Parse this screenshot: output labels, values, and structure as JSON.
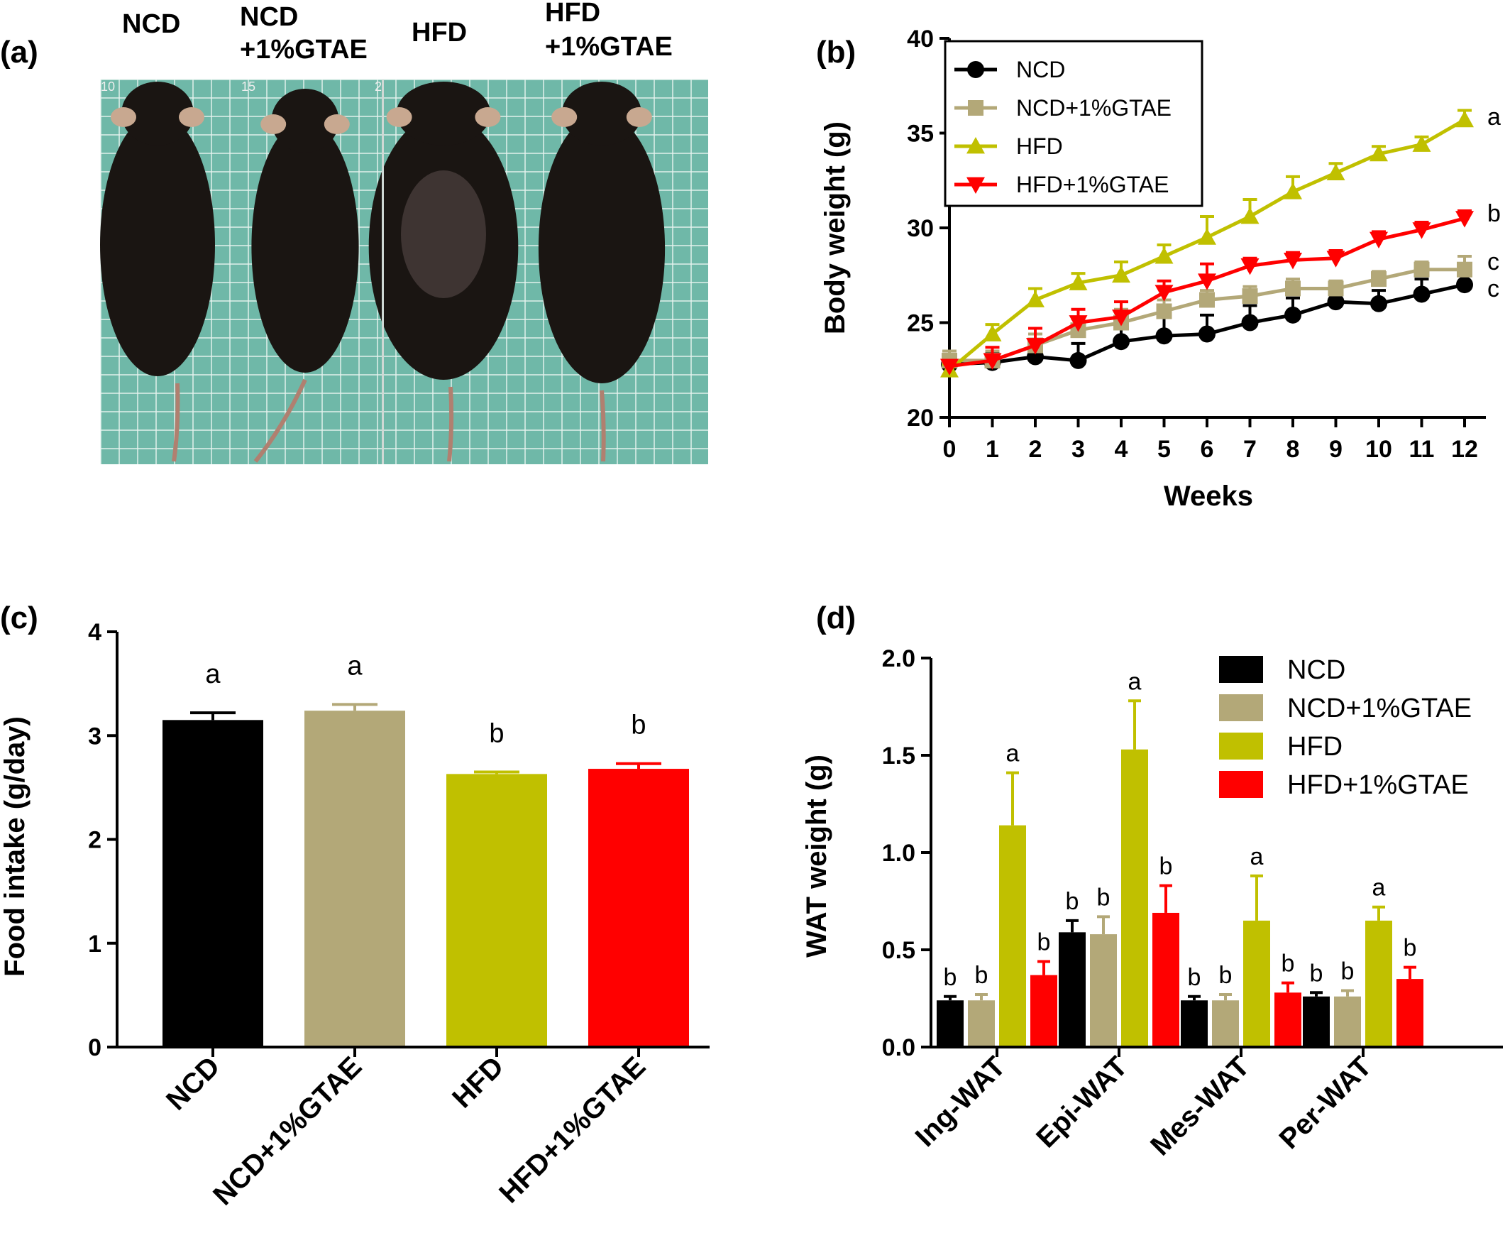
{
  "panels": {
    "a": {
      "label": "(a)",
      "photo_labels": [
        "NCD",
        "NCD",
        "+1%GTAE",
        "HFD",
        "HFD",
        "+1%GTAE"
      ],
      "ruler_marks": [
        "10",
        "15",
        "2"
      ]
    },
    "b": {
      "label": "(b)"
    },
    "c": {
      "label": "(c)"
    },
    "d": {
      "label": "(d)"
    }
  },
  "colors": {
    "NCD": "#000000",
    "NCD+1%GTAE": "#b3a878",
    "HFD": "#c0c000",
    "HFD+1%GTAE": "#ff0000",
    "photo_bg": "#6fb8a8",
    "grid": "#e8f4f0",
    "mouse": "#1a1512"
  },
  "chart_data": [
    {
      "type": "line",
      "panel": "b",
      "xlabel": "Weeks",
      "ylabel": "Body weight (g)",
      "x": [
        0,
        1,
        2,
        3,
        4,
        5,
        6,
        7,
        8,
        9,
        10,
        11,
        12
      ],
      "xticks": [
        "0",
        "1",
        "2",
        "3",
        "4",
        "5",
        "6",
        "7",
        "8",
        "9",
        "10",
        "11",
        "12"
      ],
      "ylim": [
        20,
        40
      ],
      "yticks": [
        "20",
        "25",
        "30",
        "35",
        "40"
      ],
      "legend_position": "top-left",
      "series": [
        {
          "name": "NCD",
          "marker": "circle",
          "values": [
            22.8,
            22.9,
            23.2,
            23.0,
            24.0,
            24.3,
            24.4,
            25.0,
            25.4,
            26.1,
            26.0,
            26.5,
            27.0
          ],
          "errors": [
            0.5,
            0.5,
            0.6,
            0.9,
            1.2,
            1.1,
            1.0,
            0.9,
            0.9,
            0.6,
            0.7,
            0.8,
            0.6
          ]
        },
        {
          "name": "NCD+1%GTAE",
          "marker": "square",
          "values": [
            23.0,
            23.0,
            23.8,
            24.6,
            25.0,
            25.6,
            26.2,
            26.4,
            26.8,
            26.8,
            27.3,
            27.8,
            27.8
          ],
          "errors": [
            0.5,
            0.5,
            0.6,
            0.6,
            0.7,
            0.6,
            0.5,
            0.5,
            0.5,
            0.4,
            0.4,
            0.4,
            0.7
          ]
        },
        {
          "name": "HFD",
          "marker": "triangle-up",
          "values": [
            22.5,
            24.4,
            26.2,
            27.1,
            27.5,
            28.5,
            29.5,
            30.6,
            31.9,
            32.9,
            33.9,
            34.4,
            35.7
          ],
          "errors": [
            0.3,
            0.5,
            0.6,
            0.5,
            0.7,
            0.6,
            1.1,
            0.9,
            0.8,
            0.5,
            0.4,
            0.4,
            0.5
          ]
        },
        {
          "name": "HFD+1%GTAE",
          "marker": "triangle-down",
          "values": [
            22.7,
            23.0,
            23.8,
            25.0,
            25.3,
            26.6,
            27.2,
            28.0,
            28.3,
            28.4,
            29.4,
            29.9,
            30.5
          ],
          "errors": [
            0.3,
            0.7,
            0.9,
            0.7,
            0.8,
            0.6,
            0.9,
            0.4,
            0.4,
            0.4,
            0.4,
            0.4,
            0.4
          ]
        }
      ],
      "annotations": [
        {
          "series": "HFD",
          "text": "a"
        },
        {
          "series": "HFD+1%GTAE",
          "text": "b"
        },
        {
          "series": "NCD+1%GTAE",
          "text": "c"
        },
        {
          "series": "NCD",
          "text": "c"
        }
      ]
    },
    {
      "type": "bar",
      "panel": "c",
      "ylabel": "Food intake (g/day)",
      "categories": [
        "NCD",
        "NCD+1%GTAE",
        "HFD",
        "HFD+1%GTAE"
      ],
      "values": [
        3.15,
        3.24,
        2.63,
        2.68
      ],
      "errors": [
        0.07,
        0.06,
        0.02,
        0.05
      ],
      "letters": [
        "a",
        "a",
        "b",
        "b"
      ],
      "ylim": [
        0,
        4
      ],
      "yticks": [
        "0",
        "1",
        "2",
        "3",
        "4"
      ]
    },
    {
      "type": "bar",
      "panel": "d",
      "ylabel": "WAT weight (g)",
      "categories": [
        "Ing-WAT",
        "Epi-WAT",
        "Mes-WAT",
        "Per-WAT"
      ],
      "ylim": [
        0,
        2.0
      ],
      "yticks": [
        "0.0",
        "0.5",
        "1.0",
        "1.5",
        "2.0"
      ],
      "legend_position": "top-right",
      "series": [
        {
          "name": "NCD",
          "values": [
            0.24,
            0.59,
            0.24,
            0.26
          ],
          "errors": [
            0.02,
            0.06,
            0.02,
            0.02
          ],
          "letters": [
            "b",
            "b",
            "b",
            "b"
          ]
        },
        {
          "name": "NCD+1%GTAE",
          "values": [
            0.24,
            0.58,
            0.24,
            0.26
          ],
          "errors": [
            0.03,
            0.09,
            0.03,
            0.03
          ],
          "letters": [
            "b",
            "b",
            "b",
            "b"
          ]
        },
        {
          "name": "HFD",
          "values": [
            1.14,
            1.53,
            0.65,
            0.65
          ],
          "errors": [
            0.27,
            0.25,
            0.23,
            0.07
          ],
          "letters": [
            "a",
            "a",
            "a",
            "a"
          ]
        },
        {
          "name": "HFD+1%GTAE",
          "values": [
            0.37,
            0.69,
            0.28,
            0.35
          ],
          "errors": [
            0.07,
            0.14,
            0.05,
            0.06
          ],
          "letters": [
            "b",
            "b",
            "b",
            "b"
          ]
        }
      ]
    }
  ]
}
